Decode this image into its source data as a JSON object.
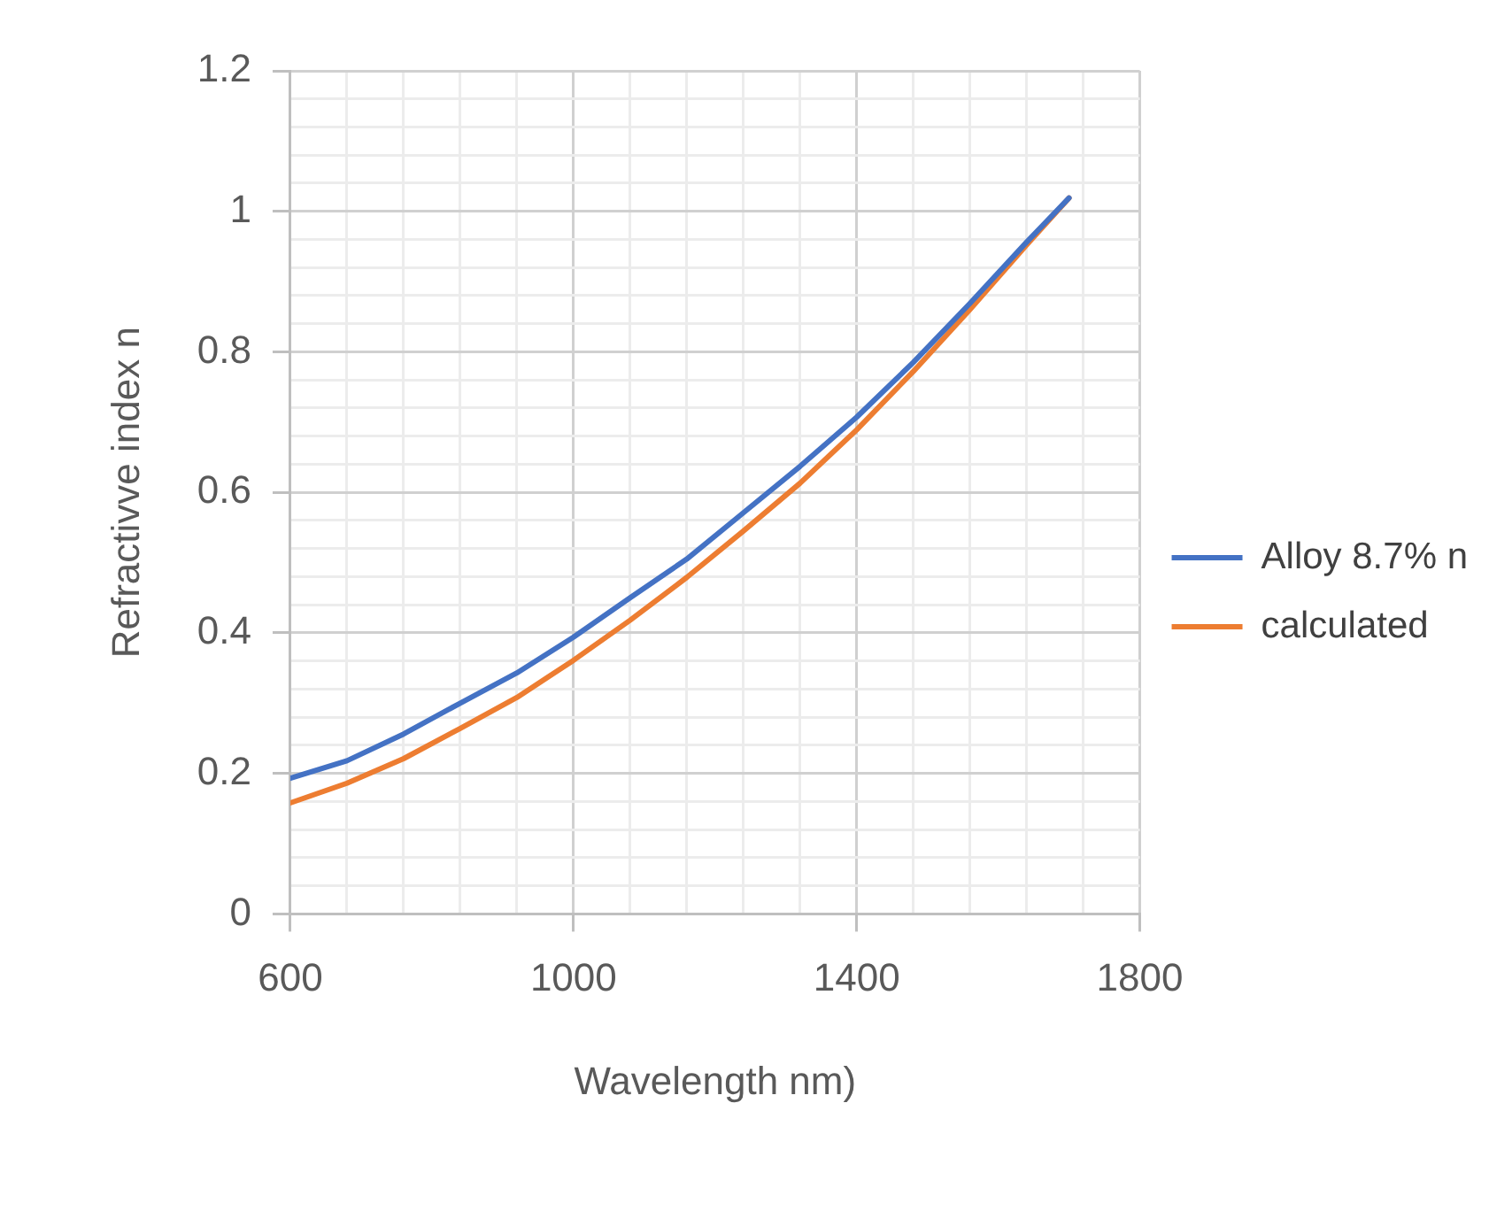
{
  "chart_data": {
    "type": "line",
    "xlabel": "Wavelength nm)",
    "ylabel": "Refractivve index n",
    "x": [
      600,
      680,
      760,
      840,
      920,
      1000,
      1080,
      1160,
      1240,
      1320,
      1400,
      1480,
      1560,
      1640,
      1700
    ],
    "series": [
      {
        "name": "Alloy 8.7% n",
        "color": "#4472c4",
        "values": [
          0.193,
          0.218,
          0.256,
          0.3,
          0.343,
          0.394,
          0.45,
          0.505,
          0.571,
          0.637,
          0.707,
          0.785,
          0.869,
          0.956,
          1.019
        ]
      },
      {
        "name": "calculated",
        "color": "#ed7d31",
        "values": [
          0.158,
          0.186,
          0.221,
          0.264,
          0.308,
          0.361,
          0.418,
          0.479,
          0.545,
          0.613,
          0.689,
          0.772,
          0.86,
          0.952,
          1.019
        ]
      }
    ],
    "xlim": [
      600,
      1800
    ],
    "xticks": [
      600,
      {
        "value": 680,
        "label": null
      },
      {
        "value": 760,
        "label": null
      },
      {
        "value": 840,
        "label": null
      },
      {
        "value": 920,
        "label": null
      },
      1000,
      {
        "value": 1080,
        "label": null
      },
      {
        "value": 1160,
        "label": null
      },
      {
        "value": 1240,
        "label": null
      },
      {
        "value": 1320,
        "label": null
      },
      1400,
      {
        "value": 1480,
        "label": null
      },
      {
        "value": 1560,
        "label": null
      },
      {
        "value": 1640,
        "label": null
      },
      {
        "value": 1720,
        "label": null
      },
      1800
    ],
    "ylim": [
      0,
      1.2
    ],
    "yticks": [
      0,
      {
        "value": 0.04,
        "label": null
      },
      {
        "value": 0.08,
        "label": null
      },
      {
        "value": 0.12,
        "label": null
      },
      {
        "value": 0.16,
        "label": null
      },
      0.2,
      {
        "value": 0.24,
        "label": null
      },
      {
        "value": 0.28,
        "label": null
      },
      {
        "value": 0.32,
        "label": null
      },
      {
        "value": 0.36,
        "label": null
      },
      0.4,
      {
        "value": 0.44,
        "label": null
      },
      {
        "value": 0.48,
        "label": null
      },
      {
        "value": 0.52,
        "label": null
      },
      {
        "value": 0.56,
        "label": null
      },
      0.6,
      {
        "value": 0.64,
        "label": null
      },
      {
        "value": 0.68,
        "label": null
      },
      {
        "value": 0.72,
        "label": null
      },
      {
        "value": 0.76,
        "label": null
      },
      0.8,
      {
        "value": 0.84,
        "label": null
      },
      {
        "value": 0.88,
        "label": null
      },
      {
        "value": 0.92,
        "label": null
      },
      {
        "value": 0.96,
        "label": null
      },
      1,
      {
        "value": 1.04,
        "label": null
      },
      {
        "value": 1.08,
        "label": null
      },
      {
        "value": 1.12,
        "label": null
      },
      {
        "value": 1.16,
        "label": null
      },
      1.2
    ],
    "grid": true,
    "legend": "right",
    "marker": "none",
    "line_style": "solid"
  }
}
